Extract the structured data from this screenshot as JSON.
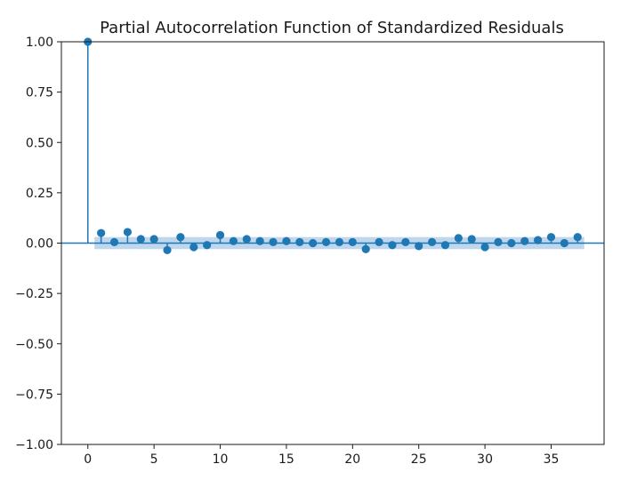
{
  "chart_data": {
    "type": "scatter",
    "title": "Partial Autocorrelation Function of Standardized Residuals",
    "xlabel": "",
    "ylabel": "",
    "xlim": [
      -2,
      39
    ],
    "ylim": [
      -1.0,
      1.0
    ],
    "x_ticks": [
      0,
      5,
      10,
      15,
      20,
      25,
      30,
      35
    ],
    "x_tick_labels": [
      "0",
      "5",
      "10",
      "15",
      "20",
      "25",
      "30",
      "35"
    ],
    "y_ticks": [
      1.0,
      0.75,
      0.5,
      0.25,
      0.0,
      -0.25,
      -0.5,
      -0.75,
      -1.0
    ],
    "y_tick_labels": [
      "1.00",
      "0.75",
      "0.50",
      "0.25",
      "0.00",
      "−0.25",
      "−0.50",
      "−0.75",
      "−1.00"
    ],
    "grid": false,
    "series": [
      {
        "x": [
          0,
          1,
          2,
          3,
          4,
          5,
          6,
          7,
          8,
          9,
          10,
          11,
          12,
          13,
          14,
          15,
          16,
          17,
          18,
          19,
          20,
          21,
          22,
          23,
          24,
          25,
          26,
          27,
          28,
          29,
          30,
          31,
          32,
          33,
          34,
          35,
          36,
          37
        ],
        "values": [
          1.0,
          0.05,
          0.005,
          0.055,
          0.02,
          0.02,
          -0.035,
          0.03,
          -0.02,
          -0.01,
          0.04,
          0.01,
          0.02,
          0.01,
          0.005,
          0.01,
          0.005,
          0.0,
          0.005,
          0.005,
          0.005,
          -0.03,
          0.005,
          -0.01,
          0.005,
          -0.015,
          0.005,
          -0.01,
          0.025,
          0.02,
          -0.02,
          0.005,
          0.0,
          0.01,
          0.015,
          0.03,
          0.0,
          0.03
        ]
      }
    ],
    "confidence_band": {
      "lower": -0.03,
      "upper": 0.03
    },
    "colors": {
      "series": "#1f77b4",
      "band": "#a9c9e6",
      "axis": "#1a1a1a",
      "zero_line": "#1f77b4"
    }
  }
}
